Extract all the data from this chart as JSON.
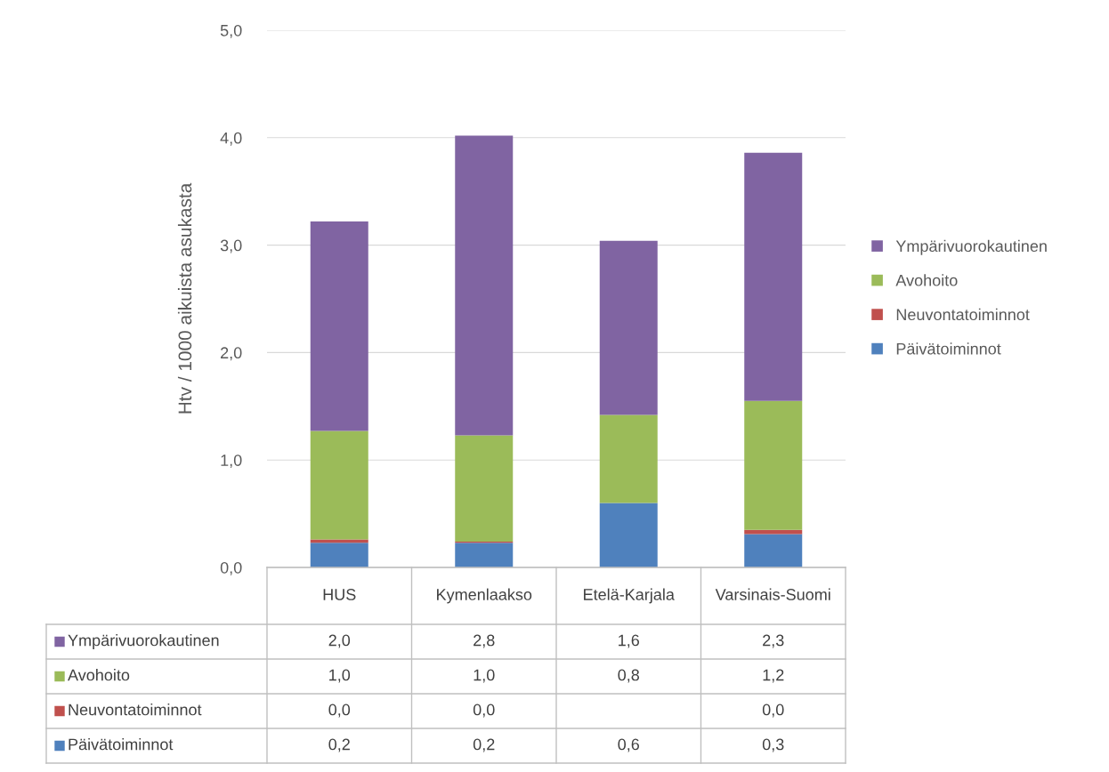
{
  "chart_data": {
    "type": "bar",
    "stacked": true,
    "ylabel": "Htv / 1000 aikuista asukasta",
    "categories": [
      "HUS",
      "Kymenlaakso",
      "Etelä-Karjala",
      "Varsinais-Suomi"
    ],
    "series": [
      {
        "name": "Päivätoiminnot",
        "color": "#4f81bd",
        "values": [
          0.23,
          0.23,
          0.6,
          0.31
        ],
        "value_labels": [
          "0,2",
          "0,2",
          "0,6",
          "0,3"
        ]
      },
      {
        "name": "Neuvontatoiminnot",
        "color": "#c0504d",
        "values": [
          0.03,
          0.01,
          null,
          0.04
        ],
        "value_labels": [
          "0,0",
          "0,0",
          null,
          "0,0"
        ]
      },
      {
        "name": "Avohoito",
        "color": "#9bbb59",
        "values": [
          1.01,
          0.99,
          0.82,
          1.2
        ],
        "value_labels": [
          "1,0",
          "1,0",
          "0,8",
          "1,2"
        ]
      },
      {
        "name": "Ympärivuorokautinen",
        "color": "#8064a2",
        "values": [
          1.95,
          2.79,
          1.62,
          2.31
        ],
        "value_labels": [
          "2,0",
          "2,8",
          "1,6",
          "2,3"
        ]
      }
    ],
    "ylim": [
      0,
      5
    ],
    "yticks": [
      {
        "value": 0,
        "label": "0,0"
      },
      {
        "value": 1,
        "label": "1,0"
      },
      {
        "value": 2,
        "label": "2,0"
      },
      {
        "value": 3,
        "label": "3,0"
      },
      {
        "value": 4,
        "label": "4,0"
      },
      {
        "value": 5,
        "label": "5,0"
      }
    ],
    "grid": "y",
    "legend": "right"
  }
}
